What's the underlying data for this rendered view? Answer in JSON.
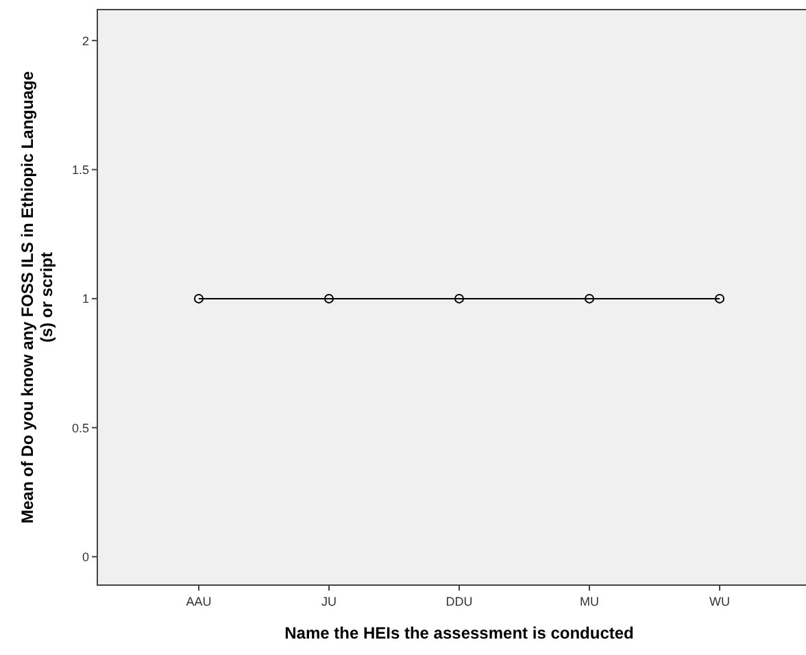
{
  "chart_data": {
    "type": "line",
    "xlabel": "Name the HEIs the assessment is conducted",
    "ylabel": "Mean of Do you know any FOSS ILS in Ethiopic Language (s) or script",
    "categories": [
      "AAU",
      "JU",
      "DDU",
      "MU",
      "WU"
    ],
    "values": [
      1,
      1,
      1,
      1,
      1
    ],
    "color": "#000000",
    "ylim": [
      -0.11,
      2.12
    ],
    "yticks": [
      0,
      0.5,
      1,
      1.5,
      2
    ],
    "grid": false,
    "marker": "circle",
    "line_style": "solid"
  }
}
